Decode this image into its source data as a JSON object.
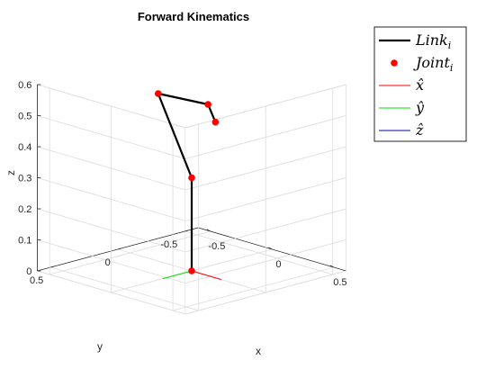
{
  "chart_data": {
    "type": "line3d",
    "title": "Forward Kinematics",
    "xlabel": "x",
    "ylabel": "y",
    "zlabel": "z",
    "xlim": [
      -0.6,
      0.6
    ],
    "ylim": [
      -0.6,
      0.6
    ],
    "zlim": [
      0,
      0.6
    ],
    "xticks": [
      -0.5,
      0,
      0.5
    ],
    "yticks": [
      -0.5,
      0,
      0.5
    ],
    "zticks": [
      0,
      0.1,
      0.2,
      0.3,
      0.4,
      0.5,
      0.6
    ],
    "xtick_labels": [
      "-0.5",
      "0",
      "0.5"
    ],
    "ytick_labels": [
      "-0.5",
      "0",
      "0.5"
    ],
    "ztick_labels": [
      "0",
      "0.1",
      "0.2",
      "0.3",
      "0.4",
      "0.5",
      "0.6"
    ],
    "grid": true,
    "view": {
      "azimuth": -37.5,
      "elevation": 30
    },
    "links": {
      "color": "#000000",
      "points": [
        [
          0,
          0,
          0
        ],
        [
          0,
          0,
          0.3
        ],
        [
          0,
          0.25,
          0.6
        ],
        [
          0.35,
          0.2,
          0.6
        ],
        [
          0.41,
          0.2,
          0.55
        ]
      ]
    },
    "joints": {
      "color": "#ff0000",
      "points": [
        [
          0,
          0,
          0
        ],
        [
          0,
          0,
          0.3
        ],
        [
          0,
          0.25,
          0.6
        ],
        [
          0.35,
          0.2,
          0.6
        ],
        [
          0.41,
          0.2,
          0.55
        ]
      ]
    },
    "frame_axes": {
      "origin": [
        0,
        0,
        0
      ],
      "length": 0.1,
      "x_color": "#ff0000",
      "y_color": "#00dd00",
      "z_color": "#0000aa"
    },
    "legend": {
      "placement": "outside-right",
      "entries": [
        {
          "label": "Link",
          "sub": "i",
          "kind": "line",
          "color": "#000000"
        },
        {
          "label": "Joint",
          "sub": "i",
          "kind": "marker",
          "color": "#ff0000"
        },
        {
          "label": "x̂",
          "sub": "",
          "kind": "thinline",
          "color": "#ff0000"
        },
        {
          "label": "ŷ",
          "sub": "",
          "kind": "thinline",
          "color": "#00dd00"
        },
        {
          "label": "ẑ",
          "sub": "",
          "kind": "thinline",
          "color": "#0000aa"
        }
      ]
    }
  }
}
